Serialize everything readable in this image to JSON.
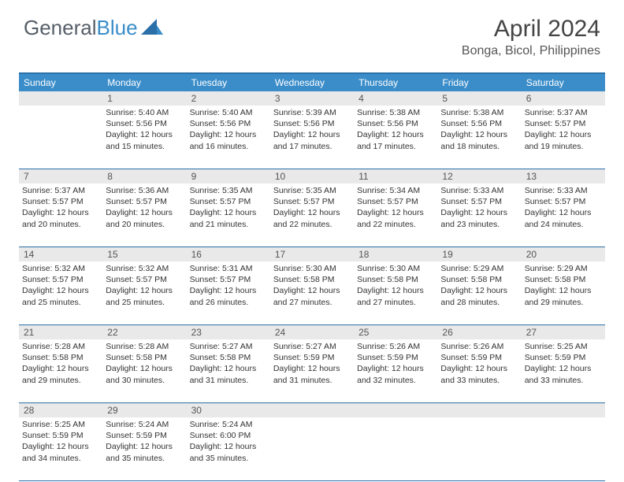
{
  "logo": {
    "text1": "General",
    "text2": "Blue"
  },
  "header": {
    "title": "April 2024",
    "location": "Bonga, Bicol, Philippines"
  },
  "colors": {
    "header_bar": "#3b8dc9",
    "border": "#2a6fa8",
    "daynum_bg": "#e9e9e9",
    "text": "#333333",
    "logo_gray": "#555e68",
    "logo_blue": "#3b8dc9"
  },
  "weekdays": [
    "Sunday",
    "Monday",
    "Tuesday",
    "Wednesday",
    "Thursday",
    "Friday",
    "Saturday"
  ],
  "weeks": [
    {
      "nums": [
        "",
        "1",
        "2",
        "3",
        "4",
        "5",
        "6"
      ],
      "cells": [
        null,
        {
          "sunrise": "Sunrise: 5:40 AM",
          "sunset": "Sunset: 5:56 PM",
          "daylight": "Daylight: 12 hours and 15 minutes."
        },
        {
          "sunrise": "Sunrise: 5:40 AM",
          "sunset": "Sunset: 5:56 PM",
          "daylight": "Daylight: 12 hours and 16 minutes."
        },
        {
          "sunrise": "Sunrise: 5:39 AM",
          "sunset": "Sunset: 5:56 PM",
          "daylight": "Daylight: 12 hours and 17 minutes."
        },
        {
          "sunrise": "Sunrise: 5:38 AM",
          "sunset": "Sunset: 5:56 PM",
          "daylight": "Daylight: 12 hours and 17 minutes."
        },
        {
          "sunrise": "Sunrise: 5:38 AM",
          "sunset": "Sunset: 5:56 PM",
          "daylight": "Daylight: 12 hours and 18 minutes."
        },
        {
          "sunrise": "Sunrise: 5:37 AM",
          "sunset": "Sunset: 5:57 PM",
          "daylight": "Daylight: 12 hours and 19 minutes."
        }
      ]
    },
    {
      "nums": [
        "7",
        "8",
        "9",
        "10",
        "11",
        "12",
        "13"
      ],
      "cells": [
        {
          "sunrise": "Sunrise: 5:37 AM",
          "sunset": "Sunset: 5:57 PM",
          "daylight": "Daylight: 12 hours and 20 minutes."
        },
        {
          "sunrise": "Sunrise: 5:36 AM",
          "sunset": "Sunset: 5:57 PM",
          "daylight": "Daylight: 12 hours and 20 minutes."
        },
        {
          "sunrise": "Sunrise: 5:35 AM",
          "sunset": "Sunset: 5:57 PM",
          "daylight": "Daylight: 12 hours and 21 minutes."
        },
        {
          "sunrise": "Sunrise: 5:35 AM",
          "sunset": "Sunset: 5:57 PM",
          "daylight": "Daylight: 12 hours and 22 minutes."
        },
        {
          "sunrise": "Sunrise: 5:34 AM",
          "sunset": "Sunset: 5:57 PM",
          "daylight": "Daylight: 12 hours and 22 minutes."
        },
        {
          "sunrise": "Sunrise: 5:33 AM",
          "sunset": "Sunset: 5:57 PM",
          "daylight": "Daylight: 12 hours and 23 minutes."
        },
        {
          "sunrise": "Sunrise: 5:33 AM",
          "sunset": "Sunset: 5:57 PM",
          "daylight": "Daylight: 12 hours and 24 minutes."
        }
      ]
    },
    {
      "nums": [
        "14",
        "15",
        "16",
        "17",
        "18",
        "19",
        "20"
      ],
      "cells": [
        {
          "sunrise": "Sunrise: 5:32 AM",
          "sunset": "Sunset: 5:57 PM",
          "daylight": "Daylight: 12 hours and 25 minutes."
        },
        {
          "sunrise": "Sunrise: 5:32 AM",
          "sunset": "Sunset: 5:57 PM",
          "daylight": "Daylight: 12 hours and 25 minutes."
        },
        {
          "sunrise": "Sunrise: 5:31 AM",
          "sunset": "Sunset: 5:57 PM",
          "daylight": "Daylight: 12 hours and 26 minutes."
        },
        {
          "sunrise": "Sunrise: 5:30 AM",
          "sunset": "Sunset: 5:58 PM",
          "daylight": "Daylight: 12 hours and 27 minutes."
        },
        {
          "sunrise": "Sunrise: 5:30 AM",
          "sunset": "Sunset: 5:58 PM",
          "daylight": "Daylight: 12 hours and 27 minutes."
        },
        {
          "sunrise": "Sunrise: 5:29 AM",
          "sunset": "Sunset: 5:58 PM",
          "daylight": "Daylight: 12 hours and 28 minutes."
        },
        {
          "sunrise": "Sunrise: 5:29 AM",
          "sunset": "Sunset: 5:58 PM",
          "daylight": "Daylight: 12 hours and 29 minutes."
        }
      ]
    },
    {
      "nums": [
        "21",
        "22",
        "23",
        "24",
        "25",
        "26",
        "27"
      ],
      "cells": [
        {
          "sunrise": "Sunrise: 5:28 AM",
          "sunset": "Sunset: 5:58 PM",
          "daylight": "Daylight: 12 hours and 29 minutes."
        },
        {
          "sunrise": "Sunrise: 5:28 AM",
          "sunset": "Sunset: 5:58 PM",
          "daylight": "Daylight: 12 hours and 30 minutes."
        },
        {
          "sunrise": "Sunrise: 5:27 AM",
          "sunset": "Sunset: 5:58 PM",
          "daylight": "Daylight: 12 hours and 31 minutes."
        },
        {
          "sunrise": "Sunrise: 5:27 AM",
          "sunset": "Sunset: 5:59 PM",
          "daylight": "Daylight: 12 hours and 31 minutes."
        },
        {
          "sunrise": "Sunrise: 5:26 AM",
          "sunset": "Sunset: 5:59 PM",
          "daylight": "Daylight: 12 hours and 32 minutes."
        },
        {
          "sunrise": "Sunrise: 5:26 AM",
          "sunset": "Sunset: 5:59 PM",
          "daylight": "Daylight: 12 hours and 33 minutes."
        },
        {
          "sunrise": "Sunrise: 5:25 AM",
          "sunset": "Sunset: 5:59 PM",
          "daylight": "Daylight: 12 hours and 33 minutes."
        }
      ]
    },
    {
      "nums": [
        "28",
        "29",
        "30",
        "",
        "",
        "",
        ""
      ],
      "cells": [
        {
          "sunrise": "Sunrise: 5:25 AM",
          "sunset": "Sunset: 5:59 PM",
          "daylight": "Daylight: 12 hours and 34 minutes."
        },
        {
          "sunrise": "Sunrise: 5:24 AM",
          "sunset": "Sunset: 5:59 PM",
          "daylight": "Daylight: 12 hours and 35 minutes."
        },
        {
          "sunrise": "Sunrise: 5:24 AM",
          "sunset": "Sunset: 6:00 PM",
          "daylight": "Daylight: 12 hours and 35 minutes."
        },
        null,
        null,
        null,
        null
      ]
    }
  ]
}
